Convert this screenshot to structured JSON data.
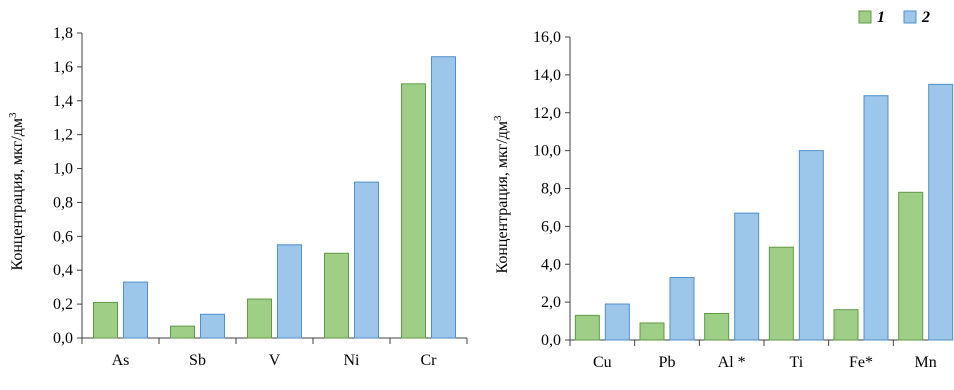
{
  "colors": {
    "series_1_fill": "#9fcf86",
    "series_1_stroke": "#5f9a45",
    "series_2_fill": "#9cc6ea",
    "series_2_stroke": "#4f8fcc",
    "axis": "#404040",
    "grid": "#d9d9d9"
  },
  "legend": {
    "position": "top-right",
    "items": [
      {
        "label": "1",
        "color": "#9fcf86"
      },
      {
        "label": "2",
        "color": "#9cc6ea"
      }
    ]
  },
  "chart_data": [
    {
      "type": "bar",
      "ylabel": "Концентрация, мкг/дм",
      "ylabel_sup": "3",
      "ylim": [
        0,
        1.8
      ],
      "ytick_step": 0.2,
      "ytick_labels": [
        "0,0",
        "0,2",
        "0,4",
        "0,6",
        "0,8",
        "1,0",
        "1,2",
        "1,4",
        "1,6",
        "1,8"
      ],
      "grid": false,
      "categories": [
        "As",
        "Sb",
        "V",
        "Ni",
        "Cr"
      ],
      "series": [
        {
          "name": "1",
          "values": [
            0.21,
            0.07,
            0.23,
            0.5,
            1.5
          ]
        },
        {
          "name": "2",
          "values": [
            0.33,
            0.14,
            0.55,
            0.92,
            1.66
          ]
        }
      ]
    },
    {
      "type": "bar",
      "ylabel": "Концентрация, мкг/дм",
      "ylabel_sup": "3",
      "ylim": [
        0,
        16
      ],
      "ytick_step": 2,
      "ytick_labels": [
        "0,0",
        "2,0",
        "4,0",
        "6,0",
        "8,0",
        "10,0",
        "12,0",
        "14,0",
        "16,0"
      ],
      "grid": false,
      "categories": [
        "Cu",
        "Pb",
        "Al *",
        "Ti",
        "Fe*",
        "Mn"
      ],
      "series": [
        {
          "name": "1",
          "values": [
            1.3,
            0.9,
            1.4,
            4.9,
            1.6,
            7.8
          ]
        },
        {
          "name": "2",
          "values": [
            1.9,
            3.3,
            6.7,
            10.0,
            12.9,
            13.5
          ]
        }
      ]
    }
  ]
}
